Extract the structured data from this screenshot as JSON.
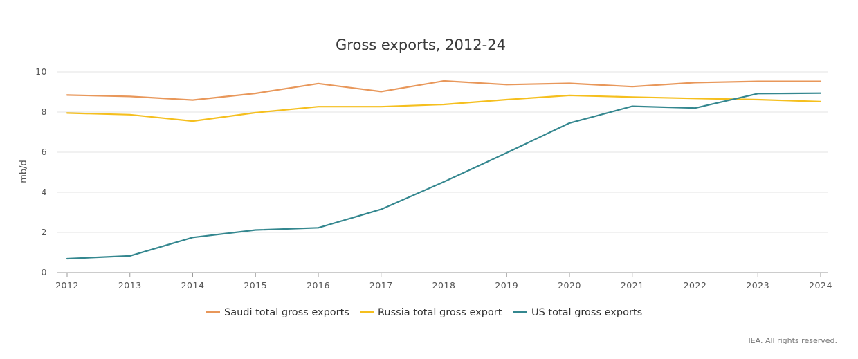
{
  "chart_data": {
    "type": "line",
    "title": "Gross exports, 2012-24",
    "xlabel": "",
    "ylabel": "mb/d",
    "ylim": [
      0,
      10
    ],
    "yticks": [
      0,
      2,
      4,
      6,
      8,
      10
    ],
    "categories": [
      "2012",
      "2013",
      "2014",
      "2015",
      "2016",
      "2017",
      "2018",
      "2019",
      "2020",
      "2021",
      "2022",
      "2023",
      "2024"
    ],
    "grid": "horizontal",
    "legend_position": "bottom",
    "series": [
      {
        "name": "Saudi total gross exports",
        "color": "#e8975a",
        "values": [
          8.85,
          8.78,
          8.6,
          8.93,
          9.42,
          9.02,
          9.55,
          9.37,
          9.43,
          9.27,
          9.47,
          9.53,
          9.53
        ]
      },
      {
        "name": "Russia total gross export",
        "color": "#f5bf1e",
        "values": [
          7.95,
          7.87,
          7.55,
          7.97,
          8.27,
          8.27,
          8.38,
          8.62,
          8.83,
          8.75,
          8.68,
          8.62,
          8.52
        ]
      },
      {
        "name": "US total gross exports",
        "color": "#34878f",
        "values": [
          0.69,
          0.83,
          1.75,
          2.12,
          2.23,
          3.15,
          4.52,
          5.97,
          7.45,
          8.29,
          8.2,
          8.92,
          8.94
        ]
      }
    ]
  },
  "footer": {
    "credit": "IEA. All rights reserved."
  }
}
